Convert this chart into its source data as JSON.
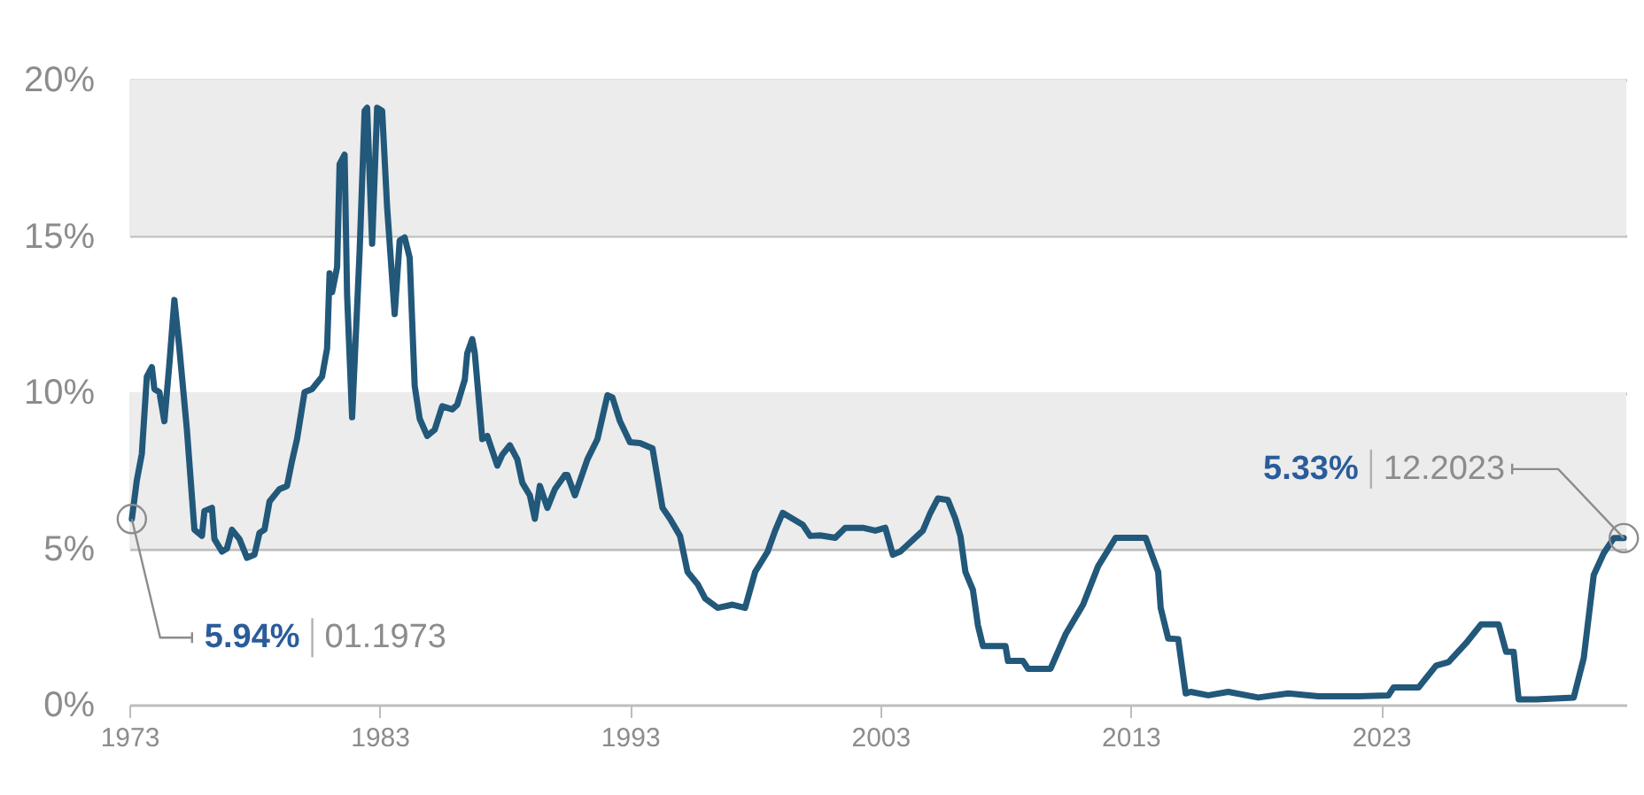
{
  "chart_data": {
    "type": "line",
    "x": [
      1973.1,
      1973.3,
      1973.5,
      1973.7,
      1973.9,
      1974.0,
      1974.2,
      1974.4,
      1974.6,
      1974.8,
      1975.0,
      1975.3,
      1975.6,
      1975.9,
      1976.0,
      1976.3,
      1976.4,
      1976.7,
      1976.9,
      1977.1,
      1977.4,
      1977.7,
      1978.0,
      1978.2,
      1978.4,
      1978.6,
      1979.0,
      1979.3,
      1979.5,
      1979.7,
      1980.0,
      1980.3,
      1980.7,
      1980.9,
      1981.0,
      1981.1,
      1981.3,
      1981.4,
      1981.6,
      1981.7,
      1981.9,
      1982.2,
      1982.4,
      1982.5,
      1982.7,
      1982.9,
      1983.1,
      1983.3,
      1983.6,
      1983.8,
      1984.0,
      1984.2,
      1984.4,
      1984.6,
      1984.9,
      1985.2,
      1985.5,
      1985.9,
      1986.1,
      1986.4,
      1986.5,
      1986.7,
      1986.8,
      1987.1,
      1987.3,
      1987.7,
      1987.9,
      1988.2,
      1988.5,
      1988.7,
      1989.0,
      1989.2,
      1989.4,
      1989.7,
      1990.0,
      1990.4,
      1990.5,
      1990.8,
      1991.3,
      1991.7,
      1992.1,
      1992.3,
      1992.6,
      1993.0,
      1993.4,
      1993.9,
      1994.3,
      1994.6,
      1995.0,
      1995.3,
      1995.7,
      1996.0,
      1996.5,
      1997.1,
      1997.6,
      1998.0,
      1998.5,
      1998.8,
      1999.1,
      1999.5,
      1999.9,
      2000.2,
      2000.6,
      2001.2,
      2001.6,
      2002.3,
      2002.8,
      2003.2,
      2003.5,
      2003.8,
      2004.2,
      2004.7,
      2005.0,
      2005.3,
      2005.7,
      2006.0,
      2006.2,
      2006.4,
      2006.7,
      2006.9,
      2007.1,
      2008.0,
      2008.1,
      2008.7,
      2008.9,
      2009.8,
      2010.4,
      2011.1,
      2011.7,
      2012.4,
      2013.6,
      2014.1,
      2014.2,
      2014.5,
      2014.9,
      2015.2,
      2015.4,
      2016.1,
      2016.9,
      2018.1,
      2019.3,
      2020.5,
      2022.1,
      2023.3,
      2023.5,
      2024.5,
      2025.2,
      2025.7,
      2026.4,
      2027.0,
      2027.7,
      2028.0,
      2028.3,
      2028.5,
      2029.2,
      2030.7,
      2031.1,
      2031.5,
      2031.9,
      2032.3,
      2032.7
    ],
    "series": [
      {
        "color": "#22587a",
        "values": [
          5.94,
          7.18,
          8.03,
          10.5,
          10.8,
          10.1,
          10.0,
          9.07,
          10.9,
          12.95,
          11.4,
          8.8,
          5.6,
          5.4,
          6.2,
          6.3,
          5.3,
          4.9,
          5.0,
          5.6,
          5.3,
          4.7,
          4.8,
          5.5,
          5.6,
          6.5,
          6.9,
          7.0,
          7.8,
          8.5,
          10.0,
          10.1,
          10.5,
          11.4,
          13.8,
          13.2,
          14.0,
          17.3,
          17.6,
          13.1,
          9.2,
          14.5,
          19.0,
          19.1,
          14.75,
          19.1,
          19.0,
          15.9,
          12.5,
          14.85,
          14.95,
          14.3,
          10.2,
          9.15,
          8.6,
          8.8,
          9.55,
          9.45,
          9.6,
          10.4,
          11.25,
          11.7,
          11.25,
          8.5,
          8.6,
          7.65,
          8.0,
          8.3,
          7.85,
          7.1,
          6.7,
          5.95,
          7.0,
          6.3,
          6.9,
          7.35,
          7.35,
          6.7,
          7.85,
          8.5,
          9.9,
          9.83,
          9.07,
          8.4,
          8.37,
          8.2,
          6.3,
          5.95,
          5.4,
          4.25,
          3.86,
          3.4,
          3.1,
          3.2,
          3.1,
          4.25,
          4.9,
          5.57,
          6.14,
          5.95,
          5.76,
          5.4,
          5.42,
          5.34,
          5.66,
          5.66,
          5.57,
          5.66,
          4.8,
          4.9,
          5.2,
          5.57,
          6.14,
          6.6,
          6.55,
          5.95,
          5.4,
          4.25,
          3.67,
          2.54,
          1.88,
          1.88,
          1.4,
          1.4,
          1.15,
          1.15,
          2.25,
          3.2,
          4.43,
          5.34,
          5.34,
          4.25,
          3.1,
          2.12,
          2.1,
          0.36,
          0.41,
          0.3,
          0.41,
          0.23,
          0.36,
          0.27,
          0.27,
          0.3,
          0.55,
          0.55,
          1.25,
          1.36,
          1.97,
          2.57,
          2.57,
          1.69,
          1.69,
          0.17,
          0.17,
          0.23,
          1.49,
          4.15,
          4.85,
          5.33,
          5.33
        ]
      }
    ],
    "xlim": [
      1973,
      2032.8
    ],
    "xticks": [
      1973,
      1983,
      1993,
      2003,
      2013,
      2023
    ],
    "ylim": [
      0,
      20
    ],
    "yticks": [
      {
        "value": 0,
        "label": "0%"
      },
      {
        "value": 5,
        "label": "5%"
      },
      {
        "value": 10,
        "label": "10%"
      },
      {
        "value": 15,
        "label": "15%"
      },
      {
        "value": 20,
        "label": "20%"
      }
    ],
    "grid": "y",
    "bands": [
      {
        "axis": "y",
        "from": 5,
        "to": 10,
        "color": "#ececec"
      },
      {
        "axis": "y",
        "from": 15,
        "to": 20,
        "color": "#ececec"
      }
    ],
    "annotations": [
      {
        "text": "5.94%",
        "x": 1973.1,
        "y": 5.94
      },
      "01.1973",
      "5.33%",
      {
        "text": "12.2023",
        "x": 2032.7,
        "y": 5.33
      }
    ]
  }
}
